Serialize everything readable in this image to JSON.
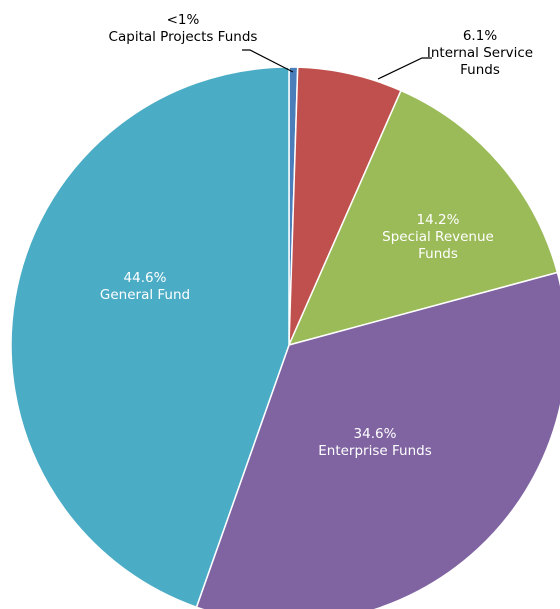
{
  "chart_data": {
    "type": "pie",
    "categories": [
      "Capital Projects Funds",
      "Internal Service Funds",
      "Special Revenue Funds",
      "Enterprise Funds",
      "General Fund"
    ],
    "values": [
      0.5,
      6.1,
      14.2,
      34.6,
      44.6
    ],
    "value_labels": [
      "<1%",
      "6.1%",
      "14.2%",
      "34.6%",
      "44.6%"
    ],
    "colors": [
      "#4a7ebb",
      "#c0504d",
      "#9bbb59",
      "#8064a2",
      "#4bacc6"
    ]
  }
}
